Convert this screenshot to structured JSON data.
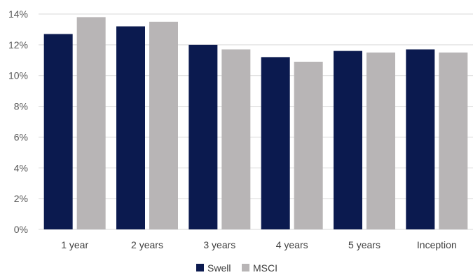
{
  "chart_data": {
    "type": "bar",
    "categories": [
      "1 year",
      "2 years",
      "3 years",
      "4 years",
      "5 years",
      "Inception"
    ],
    "series": [
      {
        "name": "Swell",
        "color": "#0b1a4f",
        "values": [
          12.7,
          13.2,
          12.0,
          11.2,
          11.6,
          11.7
        ]
      },
      {
        "name": "MSCI",
        "color": "#b8b5b6",
        "values": [
          13.8,
          13.5,
          11.7,
          10.9,
          11.5,
          11.5
        ]
      }
    ],
    "ylim": [
      0,
      14
    ],
    "yticks": [
      0,
      2,
      4,
      6,
      8,
      10,
      12,
      14
    ],
    "ytick_suffix": "%",
    "grid": true,
    "legend": "bottom-center"
  }
}
